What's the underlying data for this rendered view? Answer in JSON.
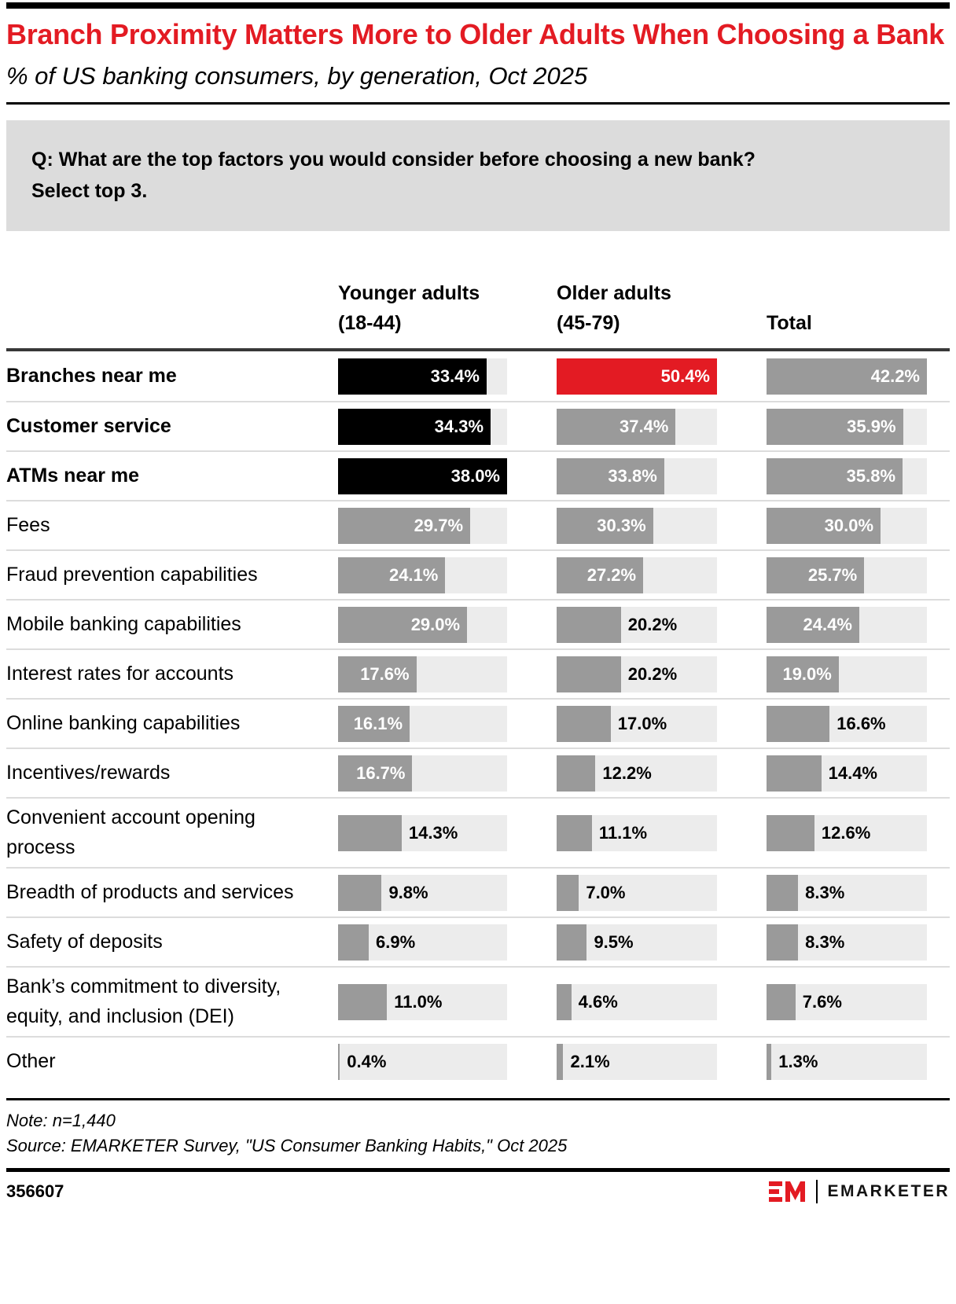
{
  "header": {
    "title": "Branch Proximity Matters More to Older Adults When Choosing a Bank",
    "subtitle": "% of US banking consumers, by generation, Oct 2025"
  },
  "question": {
    "lines": [
      "Q: What are the top factors you would consider before choosing a new bank?",
      "Select top 3."
    ]
  },
  "chart_data": {
    "type": "bar",
    "orientation": "horizontal",
    "value_suffix": "%",
    "columns": [
      {
        "label_lines": [
          "Younger adults",
          "(18-44)"
        ],
        "axis_max": 38.0
      },
      {
        "label_lines": [
          "Older adults",
          "(45-79)"
        ],
        "axis_max": 50.4
      },
      {
        "label_lines": [
          "Total"
        ],
        "axis_max": 42.2
      }
    ],
    "categories": [
      "Branches near me",
      "Customer service",
      "ATMs near me",
      "Fees",
      "Fraud prevention capabilities",
      "Mobile banking capabilities",
      "Interest rates for accounts",
      "Online banking capabilities",
      "Incentives/rewards",
      "Convenient account opening process",
      "Breadth of products and services",
      "Safety of deposits",
      "Bank’s commitment to diversity, equity, and inclusion (DEI)",
      "Other"
    ],
    "rows": [
      {
        "label": "Branches near me",
        "bold": true,
        "values": [
          33.4,
          50.4,
          42.2
        ],
        "colors": [
          "black",
          "red",
          "gray"
        ]
      },
      {
        "label": "Customer service",
        "bold": true,
        "values": [
          34.3,
          37.4,
          35.9
        ],
        "colors": [
          "black",
          "gray",
          "gray"
        ]
      },
      {
        "label": "ATMs near me",
        "bold": true,
        "values": [
          38.0,
          33.8,
          35.8
        ],
        "colors": [
          "black",
          "gray",
          "gray"
        ]
      },
      {
        "label": "Fees",
        "bold": false,
        "values": [
          29.7,
          30.3,
          30.0
        ],
        "colors": [
          "gray",
          "gray",
          "gray"
        ]
      },
      {
        "label": "Fraud prevention capabilities",
        "bold": false,
        "values": [
          24.1,
          27.2,
          25.7
        ],
        "colors": [
          "gray",
          "gray",
          "gray"
        ]
      },
      {
        "label": "Mobile banking capabilities",
        "bold": false,
        "values": [
          29.0,
          20.2,
          24.4
        ],
        "colors": [
          "gray",
          "gray",
          "gray"
        ]
      },
      {
        "label": "Interest rates for accounts",
        "bold": false,
        "values": [
          17.6,
          20.2,
          19.0
        ],
        "colors": [
          "gray",
          "gray",
          "gray"
        ]
      },
      {
        "label": "Online banking capabilities",
        "bold": false,
        "values": [
          16.1,
          17.0,
          16.6
        ],
        "colors": [
          "gray",
          "gray",
          "gray"
        ]
      },
      {
        "label": "Incentives/rewards",
        "bold": false,
        "values": [
          16.7,
          12.2,
          14.4
        ],
        "colors": [
          "gray",
          "gray",
          "gray"
        ]
      },
      {
        "label": "Convenient account opening process",
        "bold": false,
        "values": [
          14.3,
          11.1,
          12.6
        ],
        "colors": [
          "gray",
          "gray",
          "gray"
        ]
      },
      {
        "label": "Breadth of products and services",
        "bold": false,
        "values": [
          9.8,
          7.0,
          8.3
        ],
        "colors": [
          "gray",
          "gray",
          "gray"
        ]
      },
      {
        "label": "Safety of deposits",
        "bold": false,
        "values": [
          6.9,
          9.5,
          8.3
        ],
        "colors": [
          "gray",
          "gray",
          "gray"
        ]
      },
      {
        "label": "Bank’s commitment to diversity, equity, and inclusion (DEI)",
        "bold": false,
        "values": [
          11.0,
          4.6,
          7.6
        ],
        "colors": [
          "gray",
          "gray",
          "gray"
        ]
      },
      {
        "label": "Other",
        "bold": false,
        "values": [
          0.4,
          2.1,
          1.3
        ],
        "colors": [
          "gray",
          "gray",
          "gray"
        ]
      }
    ],
    "palette": {
      "black": "#000000",
      "red": "#e31b23",
      "gray": "#9a9a9a",
      "track": "#ececec"
    }
  },
  "footer": {
    "note": "Note: n=1,440",
    "source": "Source: EMARKETER Survey, \"US Consumer Banking Habits,\" Oct 2025",
    "chart_id": "356607",
    "brand": "EMARKETER"
  }
}
